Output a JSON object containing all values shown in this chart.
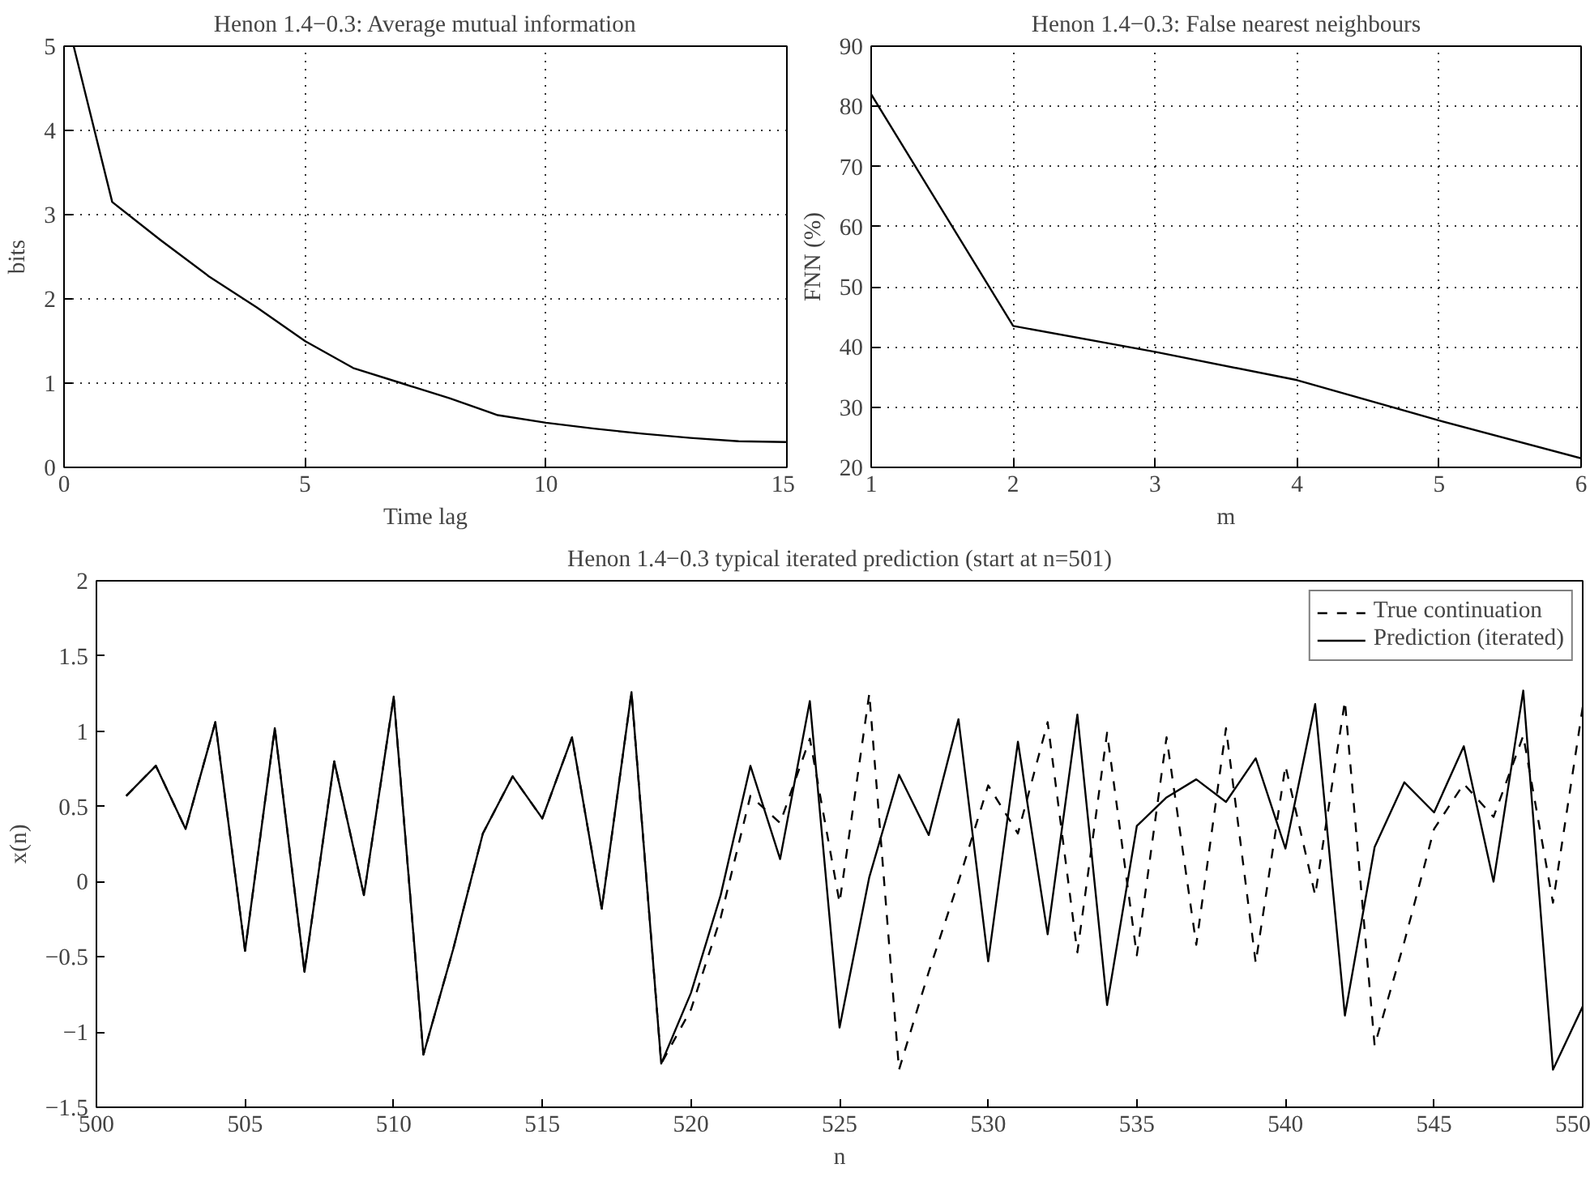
{
  "chart_data": [
    {
      "type": "line",
      "title": "Henon 1.4−0.3: Average mutual information",
      "xlabel": "Time lag",
      "ylabel": "bits",
      "xlim": [
        0,
        15
      ],
      "ylim": [
        0,
        5
      ],
      "xticks": [
        0,
        5,
        10,
        15
      ],
      "yticks": [
        0,
        1,
        2,
        3,
        4,
        5
      ],
      "grid": true,
      "series": [
        {
          "color": "#000000",
          "line_style": "solid",
          "x": [
            0.2,
            1,
            2,
            3,
            4,
            5,
            6,
            7,
            8,
            9,
            10,
            11,
            12,
            13,
            14,
            15
          ],
          "values": [
            5,
            3.15,
            2.7,
            2.27,
            1.9,
            1.5,
            1.18,
            1.0,
            0.82,
            0.62,
            0.53,
            0.46,
            0.4,
            0.35,
            0.31,
            0.3
          ]
        }
      ]
    },
    {
      "type": "line",
      "title": "Henon 1.4−0.3: False nearest neighbours",
      "xlabel": "m",
      "ylabel": "FNN (%)",
      "xlim": [
        1,
        6
      ],
      "ylim": [
        20,
        90
      ],
      "xticks": [
        1,
        2,
        3,
        4,
        5,
        6
      ],
      "yticks": [
        20,
        30,
        40,
        50,
        60,
        70,
        80,
        90
      ],
      "grid": true,
      "series": [
        {
          "color": "#000000",
          "line_style": "solid",
          "x": [
            1,
            2,
            3,
            4,
            5,
            6
          ],
          "values": [
            82,
            43.5,
            39.2,
            34.5,
            27.8,
            21.5
          ]
        }
      ]
    },
    {
      "type": "line",
      "title": "Henon 1.4−0.3 typical iterated prediction (start at n=501)",
      "xlabel": "n",
      "ylabel": "x(n)",
      "xlim": [
        500,
        550
      ],
      "ylim": [
        -1.5,
        2
      ],
      "xticks": [
        500,
        505,
        510,
        515,
        520,
        525,
        530,
        535,
        540,
        545,
        550
      ],
      "yticks": [
        -1.5,
        -1,
        -0.5,
        0,
        0.5,
        1,
        1.5,
        2
      ],
      "grid": false,
      "legend": "top right",
      "series": [
        {
          "name": "True continuation",
          "color": "#000000",
          "line_style": "dashed",
          "x": [
            501,
            502,
            503,
            504,
            505,
            506,
            507,
            508,
            509,
            510,
            511,
            512,
            513,
            514,
            515,
            516,
            517,
            518,
            519,
            520,
            521,
            522,
            523,
            524,
            525,
            526,
            527,
            528,
            529,
            530,
            531,
            532,
            533,
            534,
            535,
            536,
            537,
            538,
            539,
            540,
            541,
            542,
            543,
            544,
            545,
            546,
            547,
            548,
            549,
            550
          ],
          "values": [
            0.57,
            0.77,
            0.35,
            1.06,
            -0.46,
            1.02,
            -0.6,
            0.8,
            -0.09,
            1.23,
            -1.15,
            -0.45,
            0.32,
            0.7,
            0.42,
            0.96,
            -0.18,
            1.26,
            -1.21,
            -0.85,
            -0.24,
            0.57,
            0.39,
            0.95,
            -0.14,
            1.25,
            -1.25,
            -0.6,
            0.0,
            0.64,
            0.32,
            1.06,
            -0.47,
            0.99,
            -0.49,
            0.96,
            -0.42,
            1.02,
            -0.54,
            0.77,
            -0.09,
            1.2,
            -1.09,
            -0.4,
            0.35,
            0.65,
            0.43,
            0.97,
            -0.14,
            1.16
          ]
        },
        {
          "name": "Prediction (iterated)",
          "color": "#000000",
          "line_style": "solid",
          "x": [
            501,
            502,
            503,
            504,
            505,
            506,
            507,
            508,
            509,
            510,
            511,
            512,
            513,
            514,
            515,
            516,
            517,
            518,
            519,
            520,
            521,
            522,
            523,
            524,
            525,
            526,
            527,
            528,
            529,
            530,
            531,
            532,
            533,
            534,
            535,
            536,
            537,
            538,
            539,
            540,
            541,
            542,
            543,
            544,
            545,
            546,
            547,
            548,
            549,
            550
          ],
          "values": [
            0.57,
            0.77,
            0.35,
            1.06,
            -0.46,
            1.02,
            -0.6,
            0.8,
            -0.09,
            1.23,
            -1.15,
            -0.45,
            0.32,
            0.7,
            0.42,
            0.96,
            -0.18,
            1.26,
            -1.21,
            -0.74,
            -0.09,
            0.77,
            0.15,
            1.2,
            -0.97,
            0.03,
            0.71,
            0.31,
            1.08,
            -0.53,
            0.93,
            -0.35,
            1.11,
            -0.82,
            0.37,
            0.56,
            0.68,
            0.53,
            0.82,
            0.22,
            1.18,
            -0.89,
            0.23,
            0.66,
            0.46,
            0.9,
            0.0,
            1.27,
            -1.25,
            -0.83
          ]
        }
      ]
    }
  ]
}
